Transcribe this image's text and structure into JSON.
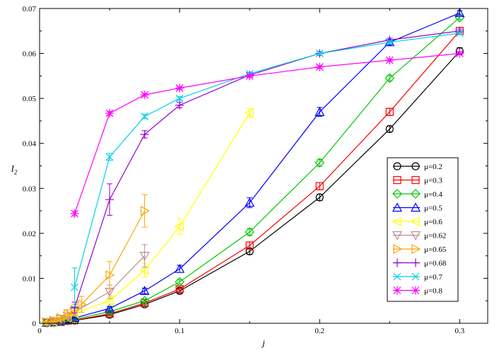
{
  "chart_data": {
    "type": "line",
    "title": "",
    "xlabel": "j",
    "ylabel": "I",
    "ylabel_subscript": "2",
    "xlim": [
      0,
      0.32
    ],
    "ylim": [
      0,
      0.07
    ],
    "xticks": [
      0,
      0.1,
      0.2,
      0.3
    ],
    "xtick_labels": [
      "0",
      "0.1",
      "0.2",
      "0.3"
    ],
    "yticks": [
      0,
      0.01,
      0.02,
      0.03,
      0.04,
      0.05,
      0.06,
      0.07
    ],
    "ytick_labels": [
      "0",
      "0.01",
      "0.02",
      "0.03",
      "0.04",
      "0.05",
      "0.06",
      "0.07"
    ],
    "grid": false,
    "legend_position": "right",
    "series": [
      {
        "name": "μ=0.2",
        "color": "#000000",
        "marker": "circle",
        "x": [
          0.005,
          0.01,
          0.015,
          0.02,
          0.025,
          0.05,
          0.075,
          0.1,
          0.15,
          0.2,
          0.25,
          0.3
        ],
        "y": [
          0.0001,
          0.0002,
          0.0003,
          0.0005,
          0.0006,
          0.0019,
          0.0042,
          0.0072,
          0.016,
          0.028,
          0.0432,
          0.0605
        ],
        "err": [
          0.0001,
          0.0001,
          0.0001,
          0.0002,
          0.0002,
          0.0003,
          0.0004,
          0.0005,
          0.0007,
          0.0007,
          0.0007,
          0.0008
        ]
      },
      {
        "name": "μ=0.3",
        "color": "#ff0000",
        "marker": "square",
        "x": [
          0.005,
          0.01,
          0.015,
          0.02,
          0.025,
          0.05,
          0.075,
          0.1,
          0.15,
          0.2,
          0.25,
          0.3
        ],
        "y": [
          0.0001,
          0.0002,
          0.0003,
          0.0006,
          0.0007,
          0.0021,
          0.0045,
          0.0076,
          0.0173,
          0.0305,
          0.047,
          0.065
        ],
        "err": [
          0.0001,
          0.0001,
          0.0001,
          0.0002,
          0.0002,
          0.0003,
          0.0004,
          0.0005,
          0.0008,
          0.0008,
          0.0008,
          0.0008
        ]
      },
      {
        "name": "μ=0.4",
        "color": "#00c800",
        "marker": "diamond",
        "x": [
          0.005,
          0.01,
          0.015,
          0.02,
          0.025,
          0.05,
          0.075,
          0.1,
          0.15,
          0.2,
          0.25,
          0.3
        ],
        "y": [
          0.0001,
          0.0002,
          0.0004,
          0.0007,
          0.0009,
          0.0026,
          0.005,
          0.0092,
          0.0203,
          0.0357,
          0.0545,
          0.068
        ],
        "err": [
          0.0001,
          0.0001,
          0.0001,
          0.0002,
          0.0002,
          0.0003,
          0.0004,
          0.0005,
          0.0008,
          0.0008,
          0.0006,
          0.0005
        ]
      },
      {
        "name": "μ=0.5",
        "color": "#0000ff",
        "marker": "triangle-up",
        "x": [
          0.005,
          0.01,
          0.015,
          0.02,
          0.025,
          0.05,
          0.075,
          0.1,
          0.15,
          0.2,
          0.25,
          0.3
        ],
        "y": [
          0.0001,
          0.0003,
          0.0005,
          0.0009,
          0.0012,
          0.0033,
          0.0072,
          0.0121,
          0.0268,
          0.047,
          0.0625,
          0.069
        ],
        "err": [
          0.0001,
          0.0001,
          0.0001,
          0.0002,
          0.0003,
          0.0004,
          0.0006,
          0.0008,
          0.0011,
          0.001,
          0.0006,
          0.0005
        ]
      },
      {
        "name": "μ=0.6",
        "color": "#ffff00",
        "marker": "triangle-left",
        "x": [
          0.005,
          0.01,
          0.015,
          0.02,
          0.025,
          0.05,
          0.075,
          0.1,
          0.15
        ],
        "y": [
          0.0002,
          0.0004,
          0.0008,
          0.0013,
          0.0022,
          0.005,
          0.0118,
          0.0215,
          0.0468
        ],
        "err": [
          0.0001,
          0.0002,
          0.0003,
          0.0004,
          0.0006,
          0.001,
          0.0015,
          0.0018,
          0.001
        ]
      },
      {
        "name": "μ=0.62",
        "color": "#bc8f8f",
        "marker": "triangle-down",
        "x": [
          0.005,
          0.01,
          0.015,
          0.02,
          0.025,
          0.05,
          0.075
        ],
        "y": [
          0.0002,
          0.0005,
          0.001,
          0.0016,
          0.0025,
          0.007,
          0.015
        ],
        "err": [
          0.0001,
          0.0002,
          0.0003,
          0.0005,
          0.0008,
          0.0015,
          0.0025
        ]
      },
      {
        "name": "μ=0.65",
        "color": "#ffa500",
        "marker": "triangle-right",
        "x": [
          0.005,
          0.01,
          0.015,
          0.02,
          0.025,
          0.03,
          0.05,
          0.075
        ],
        "y": [
          0.0003,
          0.0006,
          0.0012,
          0.0021,
          0.003,
          0.0042,
          0.0107,
          0.025
        ],
        "err": [
          0.0001,
          0.0003,
          0.0005,
          0.0009,
          0.0012,
          0.0018,
          0.003,
          0.0036
        ]
      },
      {
        "name": "μ=0.68",
        "color": "#9400d3",
        "marker": "plus",
        "x": [
          0.025,
          0.05,
          0.075,
          0.1,
          0.15,
          0.2,
          0.25,
          0.3
        ],
        "y": [
          0.0035,
          0.0275,
          0.042,
          0.0485,
          0.0552,
          0.06,
          0.063,
          0.065
        ],
        "err": [
          0.0012,
          0.0035,
          0.0008,
          0.0006,
          0.0005,
          0.0004,
          0.0004,
          0.0004
        ]
      },
      {
        "name": "μ=0.7",
        "color": "#00d2e6",
        "marker": "cross",
        "x": [
          0.025,
          0.05,
          0.075,
          0.1,
          0.15,
          0.2,
          0.25,
          0.3
        ],
        "y": [
          0.008,
          0.037,
          0.046,
          0.05,
          0.0555,
          0.06,
          0.0625,
          0.0645
        ],
        "err": [
          0.0043,
          0.0008,
          0.0005,
          0.0004,
          0.0003,
          0.0003,
          0.0003,
          0.0003
        ]
      },
      {
        "name": "μ=0.8",
        "color": "#ff00ff",
        "marker": "star",
        "x": [
          0.025,
          0.05,
          0.075,
          0.1,
          0.15,
          0.2,
          0.25,
          0.3
        ],
        "y": [
          0.0244,
          0.0467,
          0.0508,
          0.0523,
          0.055,
          0.057,
          0.0585,
          0.06
        ],
        "err": [
          0.0005,
          0.0004,
          0.0003,
          0.0003,
          0.0003,
          0.0003,
          0.0003,
          0.0003
        ]
      }
    ]
  }
}
